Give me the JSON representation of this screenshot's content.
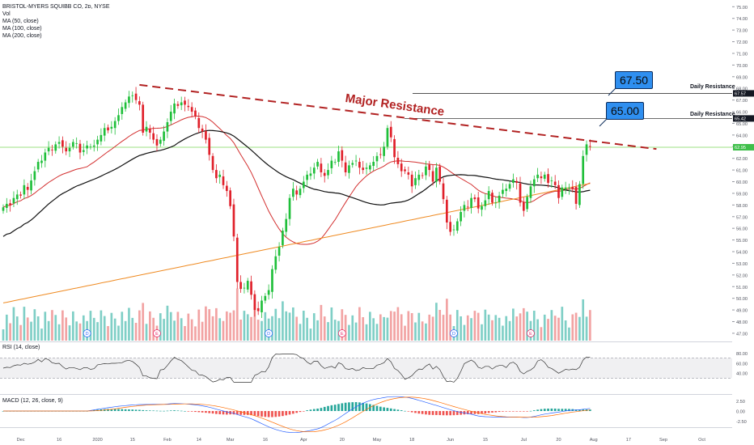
{
  "legend": {
    "symbol_line": "BRISTOL-MYERS SQUIBB CO, 2ᴅ, NYSE",
    "vol": "Vol",
    "ma50": "MA (50, close)",
    "ma100": "MA (100, close)",
    "ma200": "MA (200, close)"
  },
  "annotations": {
    "major_resistance": "Major Resistance",
    "callout_high": "67.50",
    "callout_low": "65.00",
    "daily_res_1": "Daily Resistance",
    "daily_res_2": "Daily Resistance"
  },
  "panes": {
    "rsi_label": "RSI (14, close)",
    "macd_label": "MACD (12, 26, close, 9)"
  },
  "colors": {
    "up": "#26a69a",
    "up_candle": "#1fbf3a",
    "down": "#e0202a",
    "vol_up": "#7fcfc6",
    "vol_down": "#f2a3a3",
    "ma50": "#d32f2f",
    "ma100": "#111111",
    "ma200": "#ef8a21",
    "resistance": "#b22222",
    "current_price_line": "#7ed957"
  },
  "chart_data": {
    "type": "candlestick",
    "title": "BRISTOL-MYERS SQUIBB CO, 2ᴅ, NYSE",
    "price_axis": {
      "ylim": [
        46.3,
        75.3
      ],
      "ticks": [
        "75.00",
        "74.00",
        "73.00",
        "72.00",
        "71.00",
        "70.00",
        "69.00",
        "68.00",
        "67.00",
        "66.00",
        "65.00",
        "64.00",
        "63.00",
        "62.00",
        "61.00",
        "60.00",
        "59.00",
        "58.00",
        "57.00",
        "56.00",
        "55.00",
        "54.00",
        "53.00",
        "52.00",
        "51.00",
        "50.00",
        "49.00",
        "48.00",
        "47.00"
      ],
      "tick_values": [
        75,
        74,
        73,
        72,
        71,
        70,
        69,
        68,
        67,
        66,
        65,
        64,
        63,
        62,
        61,
        60,
        59,
        58,
        57,
        56,
        55,
        54,
        53,
        52,
        51,
        50,
        49,
        48,
        47
      ]
    },
    "time_axis": {
      "labels": [
        "Dec",
        "16",
        "2020",
        "15",
        "Feb",
        "14",
        "Mar",
        "16",
        "Apr",
        "20",
        "May",
        "18",
        "Jun",
        "15",
        "Jul",
        "20",
        "Aug",
        "17",
        "Sep",
        "Oct"
      ],
      "index": [
        5,
        16,
        27,
        37,
        47,
        56,
        65,
        75,
        86,
        97,
        107,
        117,
        128,
        138,
        149,
        159,
        169,
        179,
        189,
        200
      ]
    },
    "last_bar_index": 170,
    "candles_close": [
      57.8,
      58.1,
      58.0,
      58.6,
      58.9,
      58.8,
      59.7,
      59.3,
      60.1,
      60.9,
      61.7,
      61.8,
      62.5,
      62.9,
      62.7,
      63.2,
      63.4,
      63.0,
      62.6,
      62.9,
      63.4,
      63.3,
      62.5,
      62.7,
      63.1,
      63.0,
      63.1,
      63.6,
      64.0,
      64.6,
      64.4,
      64.7,
      65.2,
      65.7,
      66.4,
      66.8,
      67.3,
      67.4,
      67.0,
      66.6,
      64.2,
      64.7,
      64.2,
      63.6,
      63.1,
      63.6,
      64.3,
      65.1,
      66.0,
      66.7,
      66.5,
      66.8,
      66.6,
      66.4,
      66.0,
      65.6,
      64.6,
      64.3,
      63.6,
      62.3,
      61.0,
      60.3,
      60.6,
      59.7,
      59.2,
      57.9,
      55.3,
      51.4,
      50.8,
      50.9,
      51.5,
      50.3,
      49.0,
      48.9,
      49.8,
      50.2,
      50.7,
      52.5,
      53.6,
      54.4,
      55.8,
      56.8,
      58.6,
      59.4,
      58.9,
      59.4,
      60.0,
      60.6,
      60.7,
      61.2,
      61.7,
      60.8,
      60.5,
      61.0,
      61.8,
      61.7,
      62.6,
      61.8,
      60.8,
      61.4,
      61.6,
      61.8,
      61.2,
      61.0,
      61.2,
      61.4,
      61.7,
      62.2,
      62.3,
      63.0,
      64.6,
      63.8,
      62.1,
      61.5,
      60.9,
      60.9,
      60.6,
      59.6,
      60.3,
      60.6,
      60.5,
      61.3,
      61.0,
      60.0,
      61.2,
      60.0,
      58.5,
      56.5,
      55.7,
      55.9,
      56.6,
      57.4,
      58.0,
      57.8,
      58.6,
      58.5,
      57.7,
      57.9,
      58.4,
      59.2,
      58.2,
      58.2,
      58.8,
      59.3,
      59.4,
      59.8,
      60.2,
      59.9,
      58.2,
      57.5,
      58.7,
      59.6,
      60.2,
      60.6,
      60.3,
      60.6,
      59.9,
      60.1,
      59.7,
      58.6,
      59.5,
      59.5,
      59.5,
      59.4,
      58.1,
      59.8,
      62.2,
      63.2,
      63.0
    ],
    "current_price": 62.95,
    "resistance_trendline": {
      "from_index": 39,
      "from_value": 68.3,
      "to_index": 187,
      "to_value": 62.8,
      "label": "Major Resistance"
    },
    "daily_resistance_levels": [
      {
        "value": 67.57,
        "label": "Daily Resistance"
      },
      {
        "value": 65.42,
        "label": "Daily Resistance"
      }
    ],
    "callouts": [
      {
        "value": "67.50"
      },
      {
        "value": "65.00"
      }
    ],
    "rsi": {
      "label": "RSI (14, close)",
      "ticks": [
        "80.00",
        "60.00",
        "40.00"
      ],
      "overbought": 70,
      "oversold": 30
    },
    "macd": {
      "label": "MACD (12, 26, close, 9)",
      "ticks": [
        "2.50",
        "0.00",
        "-2.50"
      ]
    }
  }
}
